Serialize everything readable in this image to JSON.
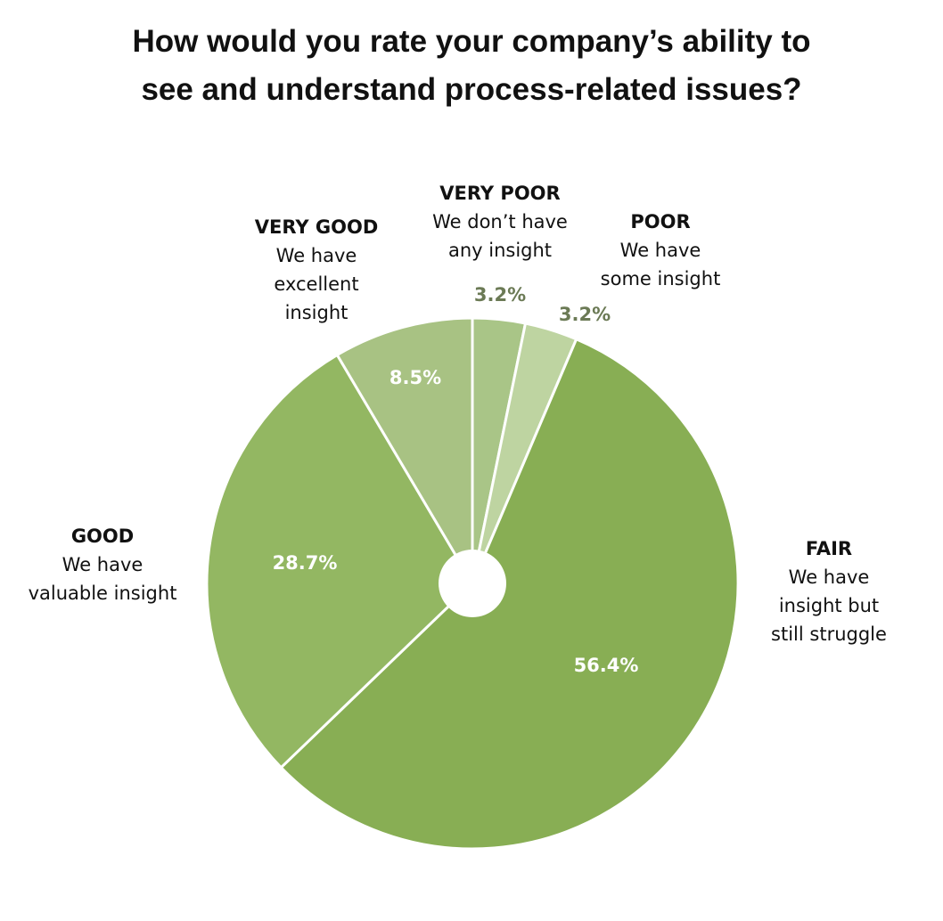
{
  "chart_data": {
    "type": "pie",
    "title_lines": [
      "How would you rate your company’s ability to",
      "see and understand process-related issues?"
    ],
    "slices": [
      {
        "name": "VERY POOR",
        "description": [
          "We don’t have",
          "any insight"
        ],
        "value": 3.2,
        "label": "3.2%",
        "color": "#a9c587"
      },
      {
        "name": "POOR",
        "description": [
          "We have",
          "some insight"
        ],
        "value": 3.2,
        "label": "3.2%",
        "color": "#bed4a1"
      },
      {
        "name": "FAIR",
        "description": [
          "We have",
          "insight but",
          "still struggle"
        ],
        "value": 56.4,
        "label": "56.4%",
        "color": "#88ae54"
      },
      {
        "name": "GOOD",
        "description": [
          "We have",
          "valuable insight"
        ],
        "value": 28.7,
        "label": "28.7%",
        "color": "#93b762"
      },
      {
        "name": "VERY GOOD",
        "description": [
          "We have",
          "excellent",
          "insight"
        ],
        "value": 8.5,
        "label": "8.5%",
        "color": "#a8c283"
      }
    ],
    "label_colors": {
      "inside": "#ffffff",
      "outside": "#6b7a55"
    },
    "legend": "none",
    "start_angle": "top, clockwise",
    "center_hole": true
  }
}
